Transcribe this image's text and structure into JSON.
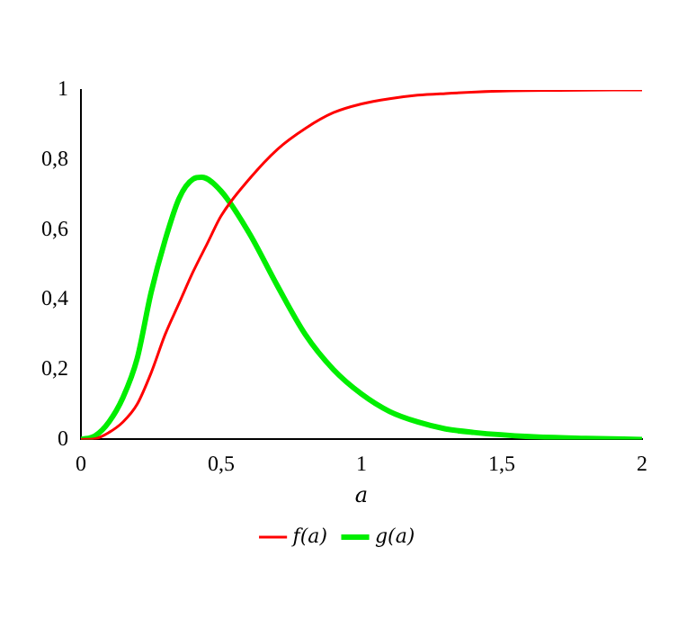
{
  "chart_data": {
    "type": "line",
    "xlabel": "a",
    "xlim": [
      0,
      2
    ],
    "xticks": [
      0,
      {
        "value": 0.5,
        "label": "0,5"
      },
      1,
      {
        "value": 1.5,
        "label": "1,5"
      },
      2
    ],
    "ylim": [
      0,
      1
    ],
    "yticks": [
      0,
      {
        "value": 0.2,
        "label": "0,2"
      },
      {
        "value": 0.4,
        "label": "0,4"
      },
      {
        "value": 0.6,
        "label": "0,6"
      },
      {
        "value": 0.8,
        "label": "0,8"
      },
      1
    ],
    "grid": false,
    "legend": "bottom",
    "marker": "none",
    "line_style": "solid",
    "series": [
      {
        "name": "f(a)",
        "color": "#ff0000",
        "x": [
          0,
          0.05,
          0.1,
          0.15,
          0.2,
          0.25,
          0.3,
          0.35,
          0.4,
          0.45,
          0.5,
          0.6,
          0.7,
          0.8,
          0.9,
          1,
          1.1,
          1.2,
          1.3,
          1.5,
          1.7,
          2
        ],
        "values": [
          0,
          0.002,
          0.02,
          0.05,
          0.1,
          0.19,
          0.3,
          0.39,
          0.48,
          0.56,
          0.64,
          0.745,
          0.83,
          0.89,
          0.935,
          0.96,
          0.975,
          0.985,
          0.99,
          0.997,
          0.999,
          1
        ]
      },
      {
        "name": "g(a)",
        "color": "#00ee00",
        "x": [
          0,
          0.05,
          0.1,
          0.15,
          0.2,
          0.25,
          0.3,
          0.35,
          0.4,
          0.43,
          0.5,
          0.6,
          0.7,
          0.8,
          0.9,
          1,
          1.1,
          1.2,
          1.3,
          1.4,
          1.6,
          1.8,
          2
        ],
        "values": [
          0,
          0.01,
          0.05,
          0.12,
          0.23,
          0.42,
          0.57,
          0.69,
          0.745,
          0.75,
          0.71,
          0.59,
          0.44,
          0.3,
          0.2,
          0.13,
          0.08,
          0.05,
          0.03,
          0.02,
          0.008,
          0.003,
          0
        ]
      }
    ]
  }
}
